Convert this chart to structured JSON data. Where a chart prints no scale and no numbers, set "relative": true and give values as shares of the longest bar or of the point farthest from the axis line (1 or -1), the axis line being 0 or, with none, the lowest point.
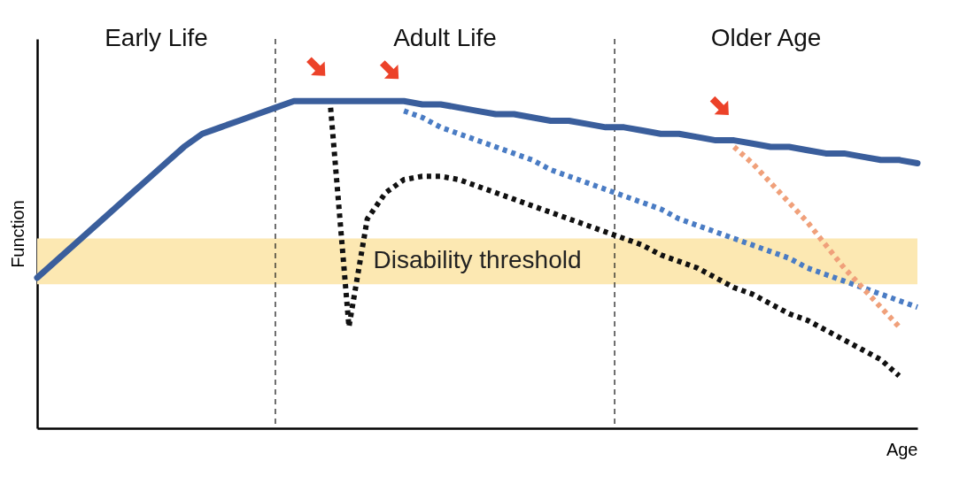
{
  "chart_data": {
    "type": "line",
    "relative": true,
    "xlabel": "Age",
    "ylabel": "Function",
    "categories": [
      null,
      null,
      null,
      null,
      null,
      null,
      null,
      null,
      null,
      null,
      null,
      null,
      null,
      null,
      null,
      null,
      null,
      null,
      null,
      null,
      null,
      null,
      null,
      null,
      null,
      null,
      null,
      null,
      null,
      null,
      null,
      null,
      null,
      null,
      null,
      null,
      null,
      null,
      null,
      null,
      null,
      null,
      null,
      null,
      null,
      null,
      null,
      null,
      null
    ],
    "series": [
      {
        "color": "#3a5e9c",
        "line_style": "solid",
        "values": [
          0.46,
          0.51,
          0.56,
          0.61,
          0.66,
          0.71,
          0.76,
          0.81,
          0.86,
          0.9,
          0.92,
          0.94,
          0.96,
          0.98,
          1.0,
          1.0,
          1.0,
          1.0,
          1.0,
          1.0,
          1.0,
          0.99,
          0.99,
          0.98,
          0.97,
          0.96,
          0.96,
          0.95,
          0.94,
          0.94,
          0.93,
          0.92,
          0.92,
          0.91,
          0.9,
          0.9,
          0.89,
          0.88,
          0.88,
          0.87,
          0.86,
          0.86,
          0.85,
          0.84,
          0.84,
          0.83,
          0.82,
          0.82,
          0.81
        ]
      },
      {
        "color": "#111111",
        "line_style": "dotted",
        "values": [
          null,
          null,
          null,
          null,
          null,
          null,
          null,
          null,
          null,
          null,
          null,
          null,
          null,
          null,
          null,
          null,
          0.98,
          0.31,
          0.64,
          0.72,
          0.76,
          0.77,
          0.77,
          0.76,
          0.74,
          0.72,
          0.7,
          0.68,
          0.66,
          0.64,
          0.62,
          0.6,
          0.58,
          0.56,
          0.53,
          0.51,
          0.49,
          0.46,
          0.43,
          0.41,
          0.38,
          0.35,
          0.33,
          0.3,
          0.27,
          0.24,
          0.21,
          0.16,
          null
        ]
      },
      {
        "color": "#4a7cc4",
        "line_style": "dotted",
        "values": [
          null,
          null,
          null,
          null,
          null,
          null,
          null,
          null,
          null,
          null,
          null,
          null,
          null,
          null,
          null,
          null,
          null,
          null,
          null,
          null,
          0.97,
          0.95,
          0.92,
          0.9,
          0.88,
          0.86,
          0.84,
          0.82,
          0.79,
          0.77,
          0.75,
          0.73,
          0.71,
          0.69,
          0.67,
          0.64,
          0.62,
          0.6,
          0.58,
          0.56,
          0.54,
          0.52,
          0.49,
          0.47,
          0.45,
          0.43,
          0.41,
          0.39,
          0.37
        ]
      },
      {
        "color": "#f0a07a",
        "line_style": "dotted",
        "values": [
          null,
          null,
          null,
          null,
          null,
          null,
          null,
          null,
          null,
          null,
          null,
          null,
          null,
          null,
          null,
          null,
          null,
          null,
          null,
          null,
          null,
          null,
          null,
          null,
          null,
          null,
          null,
          null,
          null,
          null,
          null,
          null,
          null,
          null,
          null,
          null,
          null,
          null,
          0.86,
          0.81,
          0.75,
          0.69,
          0.63,
          0.56,
          0.49,
          0.43,
          0.37,
          0.31,
          null
        ]
      }
    ],
    "bands": [
      {
        "axis": "y",
        "from": 0.44,
        "to": 0.58,
        "label": "Disability threshold",
        "color": "#fce8b2"
      }
    ],
    "annotations": [
      "Early Life",
      "Adult Life",
      "Older Age"
    ]
  }
}
